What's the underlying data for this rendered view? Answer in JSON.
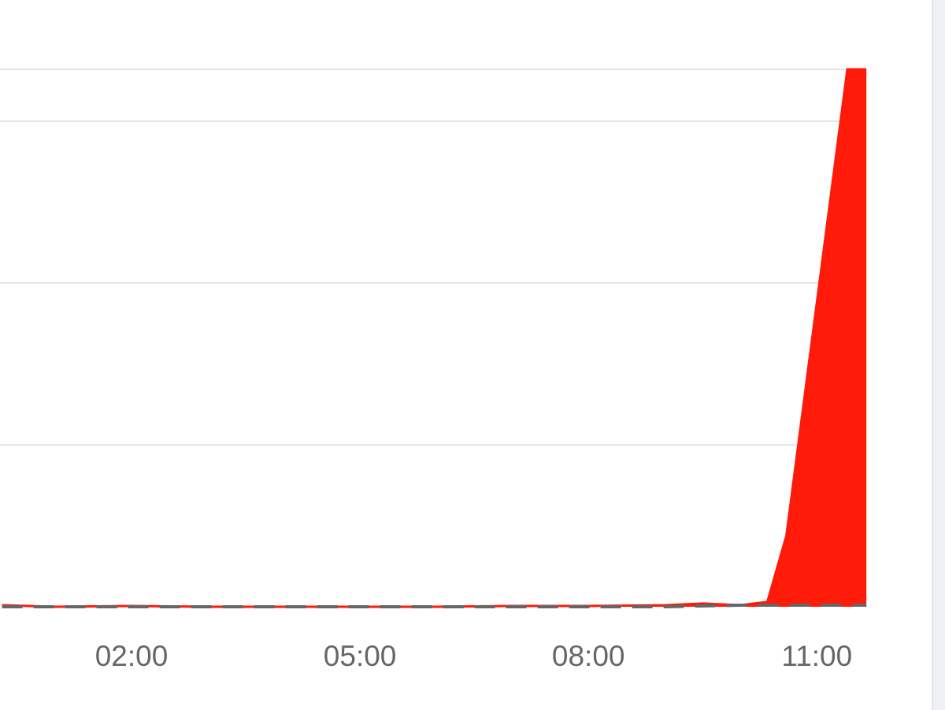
{
  "chart_data": {
    "type": "area",
    "title": "",
    "xlabel": "",
    "ylabel": "",
    "x_tick_labels": [
      "02:00",
      "05:00",
      "08:00",
      "11:00"
    ],
    "x_tick_hours": [
      2,
      5,
      8,
      11
    ],
    "xlim_hours": [
      0.27,
      11.65
    ],
    "ylim": [
      0,
      3.32
    ],
    "gridlines_y": [
      1,
      2,
      3,
      3.32
    ],
    "grid": true,
    "series": [
      {
        "style": "filled-area",
        "color": "#ff1a0a",
        "x_hours": [
          0.3,
          1,
          2,
          3,
          4,
          5,
          6,
          7,
          8,
          9,
          9.5,
          10,
          10.35,
          10.6,
          11.4,
          11.65
        ],
        "values": [
          0.01,
          0,
          0.005,
          0,
          0,
          0,
          0,
          0.005,
          0.005,
          0.01,
          0.02,
          0.01,
          0.03,
          0.44,
          3.32,
          3.32
        ]
      },
      {
        "style": "dashed-line",
        "color": "#666666",
        "x_hours": [
          0.3,
          1,
          2,
          3,
          4,
          5,
          6,
          7,
          8,
          9,
          10,
          11,
          11.65
        ],
        "values": [
          0,
          0,
          0,
          0,
          0,
          0,
          0,
          0,
          0,
          0,
          0.01,
          0.01,
          0.01
        ]
      }
    ]
  }
}
